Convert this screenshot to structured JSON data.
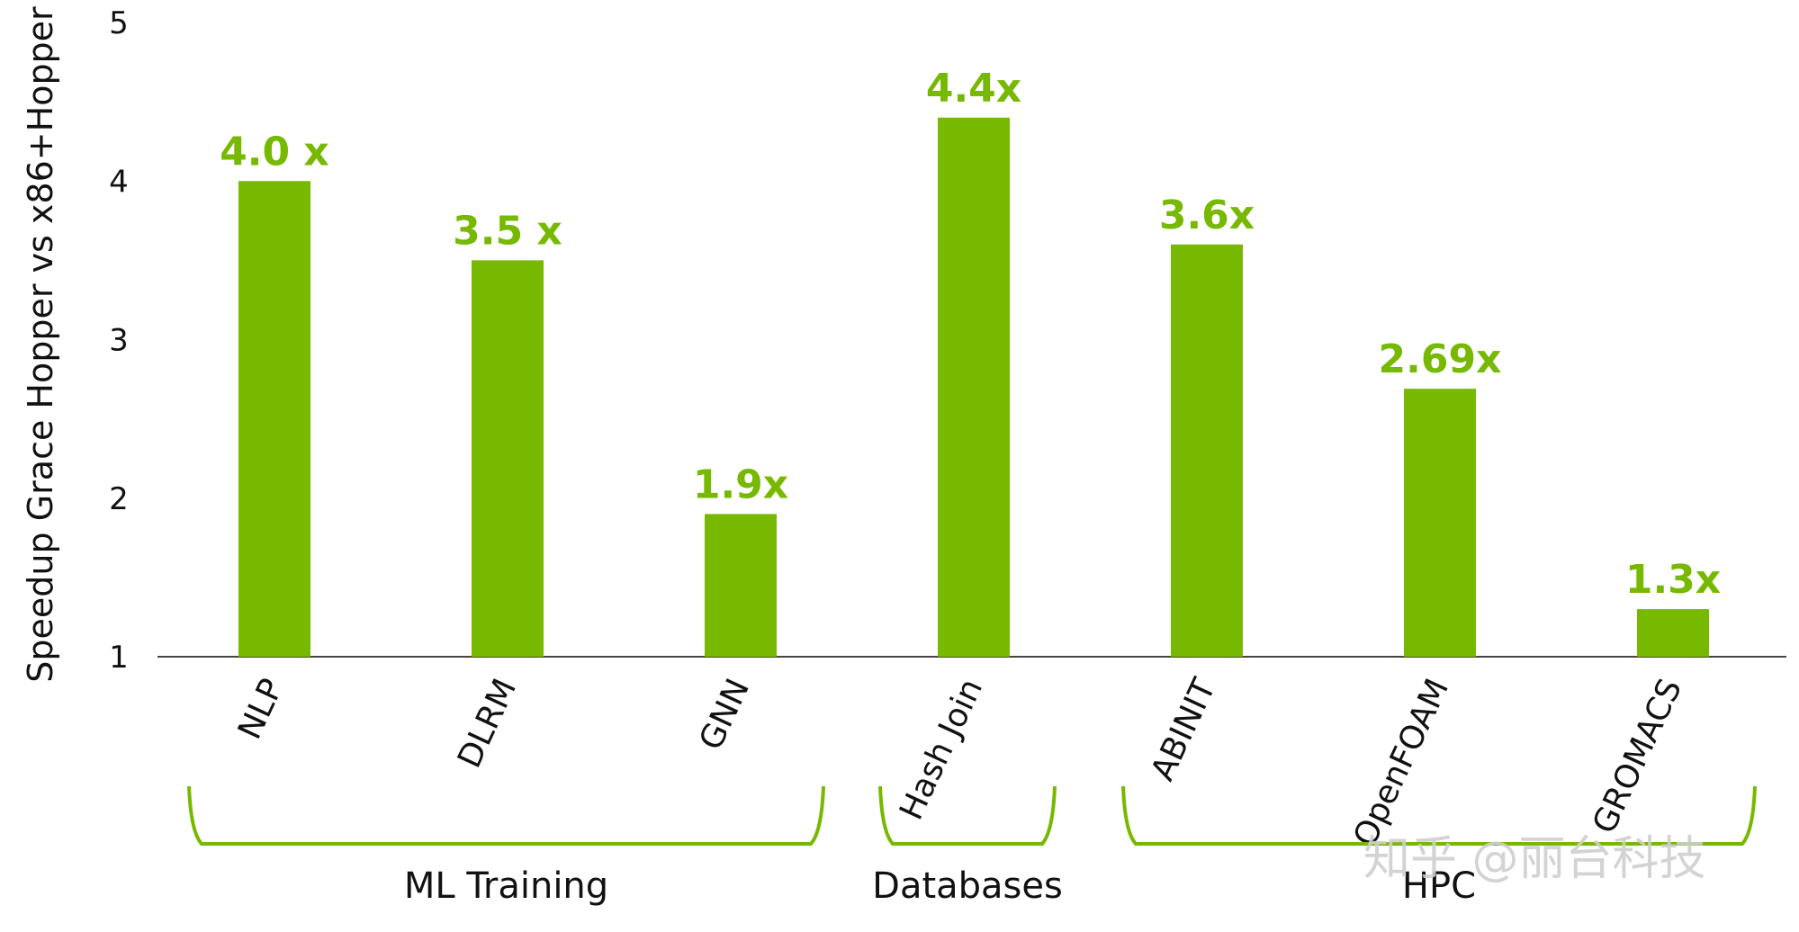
{
  "chart_data": {
    "type": "bar",
    "categories": [
      "NLP",
      "DLRM",
      "GNN",
      "Hash Join",
      "ABINIT",
      "OpenFOAM",
      "GROMACS"
    ],
    "values": [
      4.0,
      3.5,
      1.9,
      4.4,
      3.6,
      2.69,
      1.3
    ],
    "data_labels": [
      "4.0 x",
      "3.5 x",
      "1.9x",
      "4.4x",
      "3.6x",
      "2.69x",
      "1.3x"
    ],
    "ylabel": "Speedup Grace Hopper vs x86+Hopper",
    "ylim": [
      1,
      5
    ],
    "yticks": [
      1,
      2,
      3,
      4,
      5
    ],
    "groups": [
      {
        "label": "ML Training",
        "start": 0,
        "end": 2
      },
      {
        "label": "Databases",
        "start": 3,
        "end": 3
      },
      {
        "label": "HPC",
        "start": 4,
        "end": 6
      }
    ],
    "grid": false,
    "legend": "none",
    "bar_color": "#76b900"
  },
  "watermark": "知乎 @丽台科技"
}
